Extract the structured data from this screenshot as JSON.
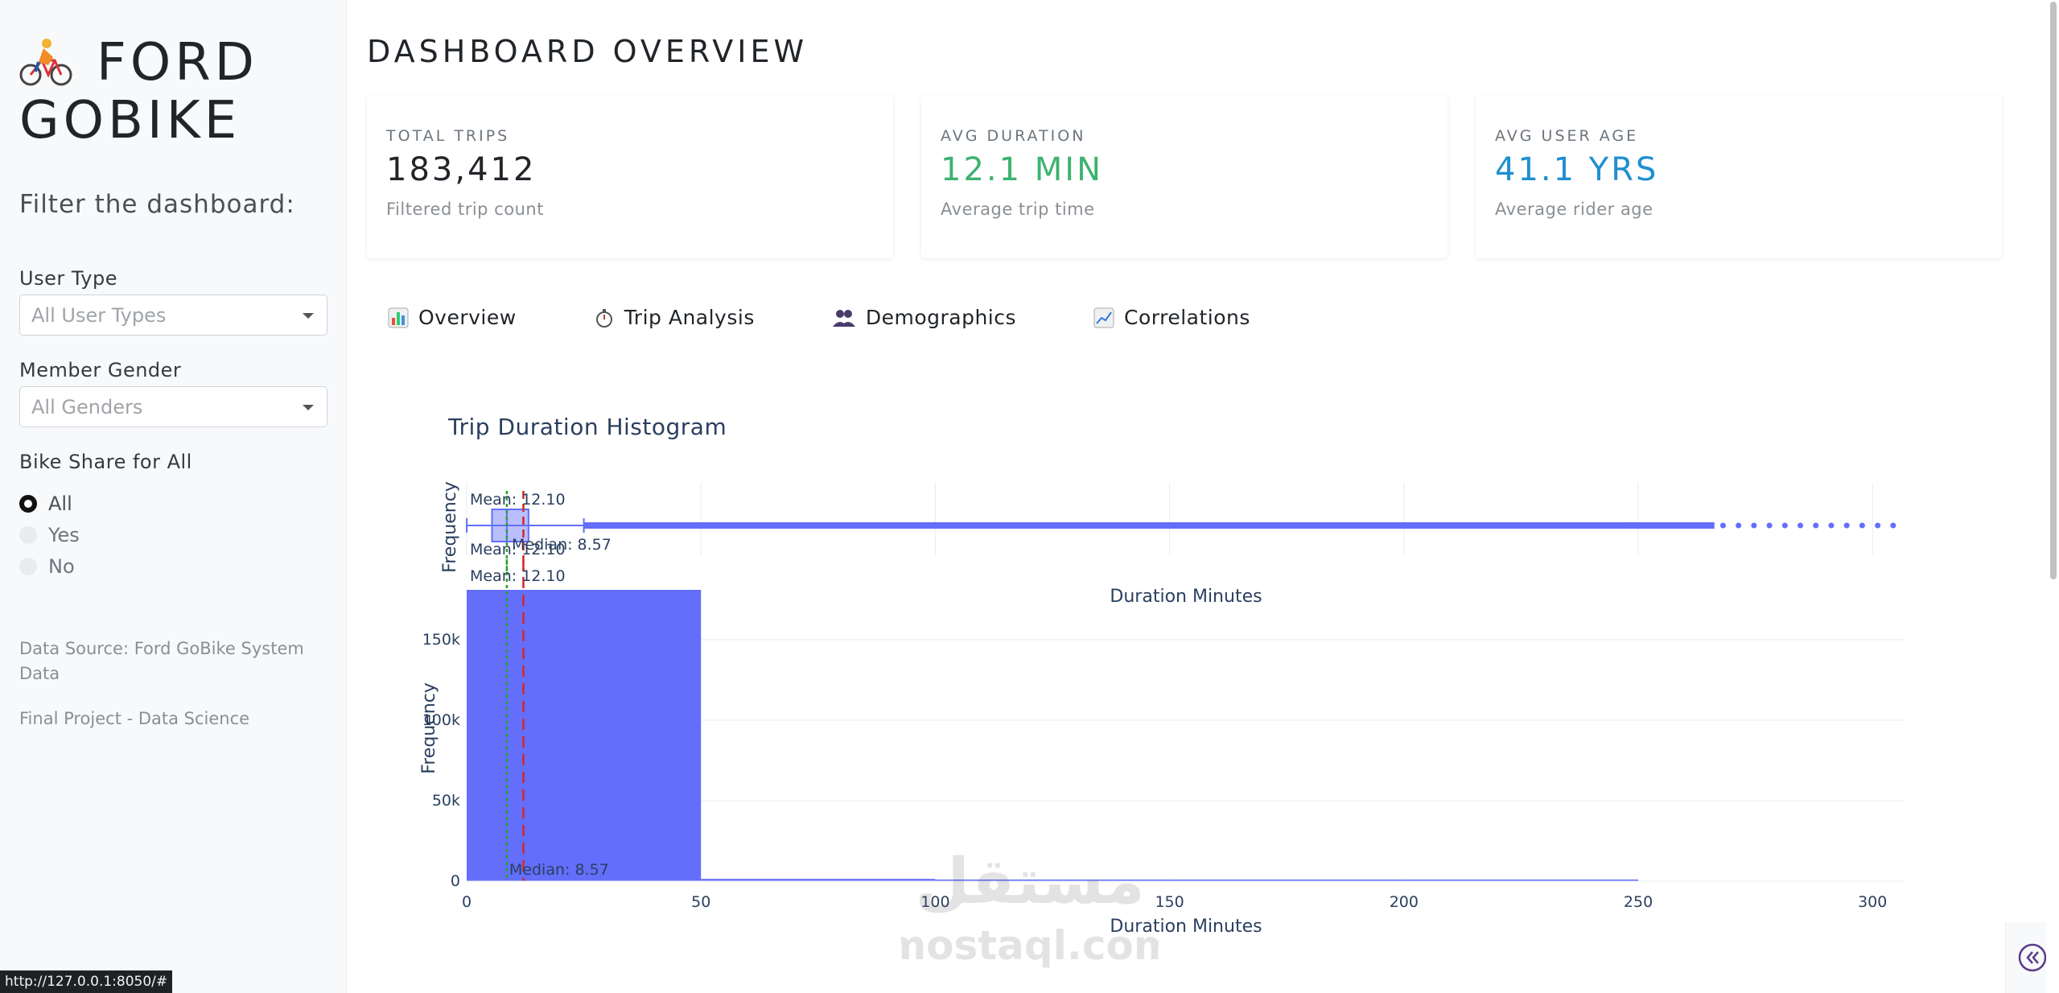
{
  "sidebar": {
    "brand_line1": "FORD",
    "brand_line2": "GOBIKE",
    "brand_icon": "bicyclist-icon",
    "filter_title": "Filter the dashboard:",
    "user_type": {
      "label": "User Type",
      "placeholder": "All User Types"
    },
    "member_gender": {
      "label": "Member Gender",
      "placeholder": "All Genders"
    },
    "bike_share": {
      "label": "Bike Share for All",
      "options": [
        {
          "label": "All",
          "selected": true
        },
        {
          "label": "Yes",
          "selected": false
        },
        {
          "label": "No",
          "selected": false
        }
      ]
    },
    "data_source": "Data Source: Ford GoBike System Data",
    "project_note": "Final Project - Data Science"
  },
  "main": {
    "title": "DASHBOARD OVERVIEW",
    "kpis": [
      {
        "label": "TOTAL TRIPS",
        "value": "183,412",
        "sub": "Filtered trip count",
        "color": "#212529"
      },
      {
        "label": "AVG DURATION",
        "value": "12.1 MIN",
        "sub": "Average trip time",
        "color": "#3cb371"
      },
      {
        "label": "AVG USER AGE",
        "value": "41.1 YRS",
        "sub": "Average rider age",
        "color": "#1f8fd0"
      }
    ],
    "tabs": [
      {
        "label": "Overview",
        "icon": "bar-chart-icon"
      },
      {
        "label": "Trip Analysis",
        "icon": "stopwatch-icon"
      },
      {
        "label": "Demographics",
        "icon": "people-icon"
      },
      {
        "label": "Correlations",
        "icon": "line-chart-icon"
      }
    ]
  },
  "chart_data": {
    "type": "bar",
    "title": "Trip Duration Histogram",
    "xlabel": "Duration Minutes",
    "ylabel": "Frequency",
    "marginal_ylabel": "Frequency",
    "marginal_xlabel": "Duration Minutes",
    "xlim": [
      0,
      307
    ],
    "ylim": [
      0,
      190000
    ],
    "x_ticks": [
      0,
      50,
      100,
      150,
      200,
      250,
      300
    ],
    "y_ticks": [
      0,
      50000,
      100000,
      150000
    ],
    "y_tick_labels": [
      "0",
      "50k",
      "100k",
      "150k"
    ],
    "bins": [
      {
        "x0": 0,
        "x1": 50,
        "count": 181000
      },
      {
        "x0": 50,
        "x1": 100,
        "count": 1400
      },
      {
        "x0": 100,
        "x1": 150,
        "count": 450
      },
      {
        "x0": 150,
        "x1": 200,
        "count": 250
      },
      {
        "x0": 200,
        "x1": 250,
        "count": 180
      }
    ],
    "bar_color": "#636efa",
    "mean": 12.1,
    "median": 8.57,
    "mean_label": "Mean: 12.10",
    "median_label": "Median: 8.57",
    "boxplot": {
      "min": 0.02,
      "q1": 5.4,
      "median": 8.57,
      "q3": 13.2,
      "upper_fence": 25
    },
    "mean_line_color": "#d62728",
    "median_line_color": "#2ca02c"
  },
  "statusbar": {
    "url": "http://127.0.0.1:8050/#"
  },
  "watermark": {
    "arabic": "مستقل",
    "latin": "mostaql.com"
  }
}
